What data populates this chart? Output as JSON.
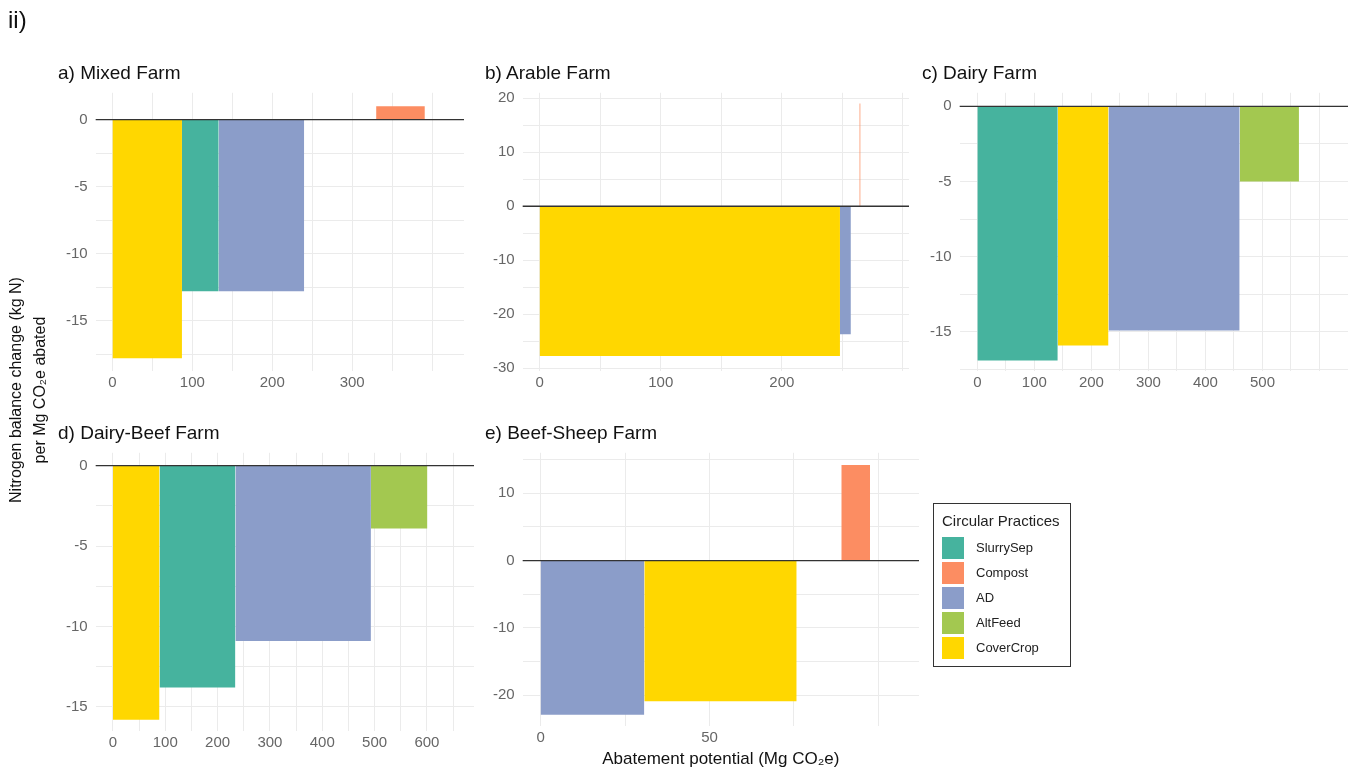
{
  "chart_data": [
    {
      "type": "area",
      "title": "a) Mixed Farm",
      "annotations": [
        "ii)"
      ],
      "series": [
        {
          "color": "#ffd700",
          "x": [
            0,
            87
          ],
          "values": [
            -17.8,
            -17.8
          ]
        },
        {
          "color": "#46b39e",
          "x": [
            87,
            133
          ],
          "values": [
            -12.8,
            -12.8
          ]
        },
        {
          "color": "#8b9dc9",
          "x": [
            133,
            240
          ],
          "values": [
            -12.8,
            -12.8
          ]
        },
        {
          "color": "#fc8d62",
          "x": [
            330,
            391
          ],
          "values": [
            1,
            1
          ]
        }
      ],
      "xlim": [
        -21,
        440
      ],
      "xticks": [
        0,
        {
          "value": 50,
          "label": null
        },
        100,
        {
          "value": 150,
          "label": null
        },
        200,
        {
          "value": 250,
          "label": null
        },
        300,
        {
          "value": 350,
          "label": null
        },
        {
          "value": 400,
          "label": null
        }
      ],
      "ylim": [
        -18.75,
        2
      ],
      "yticks": [
        0,
        {
          "value": -2.5,
          "label": null
        },
        -5,
        {
          "value": -7.5,
          "label": null
        },
        -10,
        {
          "value": -12.5,
          "label": null
        },
        -15,
        {
          "value": -17.5,
          "label": null
        }
      ],
      "ref_lines": [
        {
          "axis": "y",
          "value": 0,
          "color": "#333333"
        }
      ],
      "grid": true,
      "legend": false
    },
    {
      "type": "area",
      "title": "b) Arable Farm",
      "series": [
        {
          "color": "#ffd700",
          "x": [
            0,
            248
          ],
          "values": [
            -27.7,
            -27.7
          ]
        },
        {
          "color": "#8b9dc9",
          "x": [
            248,
            257
          ],
          "values": [
            -23.7,
            -23.7
          ]
        },
        {
          "color": "#fc8d62",
          "x": [
            264,
            265
          ],
          "values": [
            19,
            19
          ]
        }
      ],
      "xlim": [
        -14,
        305
      ],
      "xticks": [
        0,
        {
          "value": 50,
          "label": null
        },
        100,
        {
          "value": 150,
          "label": null
        },
        200,
        {
          "value": 250,
          "label": null
        },
        {
          "value": 300,
          "label": null
        }
      ],
      "ylim": [
        -30.5,
        21
      ],
      "yticks": [
        20,
        {
          "value": 15,
          "label": null
        },
        10,
        {
          "value": 5,
          "label": null
        },
        0,
        {
          "value": -5,
          "label": null
        },
        -10,
        {
          "value": -15,
          "label": null
        },
        -20,
        {
          "value": -25,
          "label": null
        },
        -30
      ],
      "ref_lines": [
        {
          "axis": "y",
          "value": 0,
          "color": "#333333"
        }
      ],
      "grid": true,
      "legend": false
    },
    {
      "type": "area",
      "title": "c) Dairy Farm",
      "series": [
        {
          "color": "#46b39e",
          "x": [
            0,
            141
          ],
          "values": [
            -16.9,
            -16.9
          ]
        },
        {
          "color": "#ffd700",
          "x": [
            141,
            230
          ],
          "values": [
            -15.9,
            -15.9
          ]
        },
        {
          "color": "#8b9dc9",
          "x": [
            230,
            460
          ],
          "values": [
            -14.9,
            -14.9
          ]
        },
        {
          "color": "#a3c850",
          "x": [
            460,
            564
          ],
          "values": [
            -5,
            -5
          ]
        }
      ],
      "xlim": [
        -31,
        650
      ],
      "xticks": [
        0,
        {
          "value": 50,
          "label": null
        },
        100,
        {
          "value": 150,
          "label": null
        },
        200,
        {
          "value": 250,
          "label": null
        },
        300,
        {
          "value": 350,
          "label": null
        },
        400,
        {
          "value": 450,
          "label": null
        },
        500,
        {
          "value": 550,
          "label": null
        },
        {
          "value": 600,
          "label": null
        }
      ],
      "ylim": [
        -17.6,
        0.9
      ],
      "yticks": [
        0,
        {
          "value": -2.5,
          "label": null
        },
        -5,
        {
          "value": -7.5,
          "label": null
        },
        -10,
        {
          "value": -12.5,
          "label": null
        },
        -15,
        {
          "value": -17.5,
          "label": null
        }
      ],
      "ref_lines": [
        {
          "axis": "y",
          "value": 0,
          "color": "#333333"
        }
      ],
      "grid": true,
      "legend": false
    },
    {
      "type": "area",
      "title": "d) Dairy-Beef Farm",
      "ylabel": "Nitrogen balance change (kg N)\nper Mg CO₂e abated",
      "series": [
        {
          "color": "#ffd700",
          "x": [
            0,
            89
          ],
          "values": [
            -15.8,
            -15.8
          ]
        },
        {
          "color": "#46b39e",
          "x": [
            89,
            234
          ],
          "values": [
            -13.8,
            -13.8
          ]
        },
        {
          "color": "#8b9dc9",
          "x": [
            234,
            493
          ],
          "values": [
            -10.9,
            -10.9
          ]
        },
        {
          "color": "#a3c850",
          "x": [
            493,
            601
          ],
          "values": [
            -3.9,
            -3.9
          ]
        }
      ],
      "xlim": [
        -33,
        690
      ],
      "xticks": [
        0,
        {
          "value": 50,
          "label": null
        },
        100,
        {
          "value": 150,
          "label": null
        },
        200,
        {
          "value": 250,
          "label": null
        },
        300,
        {
          "value": 350,
          "label": null
        },
        400,
        {
          "value": 450,
          "label": null
        },
        500,
        {
          "value": 550,
          "label": null
        },
        600,
        {
          "value": 650,
          "label": null
        }
      ],
      "ylim": [
        -16.5,
        0.8
      ],
      "yticks": [
        0,
        {
          "value": -2.5,
          "label": null
        },
        -5,
        {
          "value": -7.5,
          "label": null
        },
        -10,
        {
          "value": -12.5,
          "label": null
        },
        -15
      ],
      "ref_lines": [
        {
          "axis": "y",
          "value": 0,
          "color": "#333333"
        }
      ],
      "grid": true,
      "legend": false
    },
    {
      "type": "area",
      "title": "e) Beef-Sheep Farm",
      "xlabel": "Abatement potential (Mg CO₂e)",
      "legend_title": "Circular Practices",
      "series": [
        {
          "name": "SlurrySep",
          "color": "#46b39e"
        },
        {
          "name": "Compost",
          "color": "#fc8d62",
          "x": [
            89,
            97.5
          ],
          "values": [
            14.2,
            14.2
          ]
        },
        {
          "name": "AD",
          "color": "#8b9dc9",
          "x": [
            0,
            30.7
          ],
          "values": [
            -22.9,
            -22.9
          ]
        },
        {
          "name": "AltFeed",
          "color": "#a3c850"
        },
        {
          "name": "CoverCrop",
          "color": "#ffd700",
          "x": [
            30.7,
            75.8
          ],
          "values": [
            -20.9,
            -20.9
          ]
        }
      ],
      "xlim": [
        -5.3,
        112
      ],
      "xticks": [
        0,
        {
          "value": 25,
          "label": null
        },
        50,
        {
          "value": 75,
          "label": null
        },
        {
          "value": 100,
          "label": null
        }
      ],
      "ylim": [
        -24.5,
        16
      ],
      "yticks": [
        {
          "value": 15,
          "label": null
        },
        10,
        {
          "value": 5,
          "label": null
        },
        0,
        {
          "value": -5,
          "label": null
        },
        -10,
        {
          "value": -15,
          "label": null
        },
        -20
      ],
      "ref_lines": [
        {
          "axis": "y",
          "value": 0,
          "color": "#333333"
        }
      ],
      "grid": true,
      "legend": "right"
    }
  ]
}
